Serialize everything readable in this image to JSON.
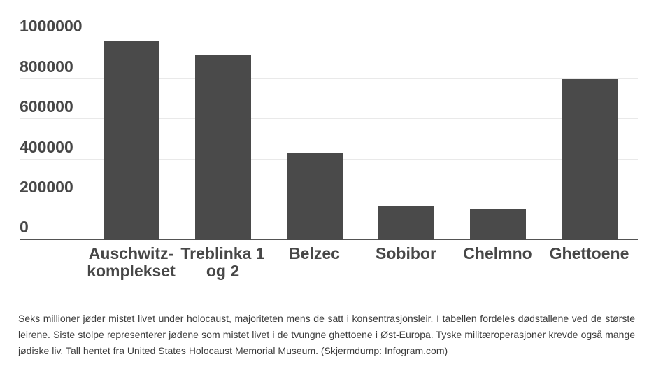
{
  "page": {
    "description": "Infogram bar chart screenshot over jødiske dødstall under holocaust"
  },
  "colors": {
    "background": "#ffffff",
    "bar": "#4a4a4a",
    "axis_text": "#474747",
    "gridline": "#e9e9e9",
    "baseline": "#545454",
    "caption_text": "#3c3c3c"
  },
  "chart_data": {
    "type": "bar",
    "title": "",
    "xlabel": "",
    "ylabel": "",
    "categories": [
      "Auschwitz-komplekset",
      "Treblinka 1 og 2",
      "Belzec",
      "Sobibor",
      "Chelmno",
      "Ghettoene"
    ],
    "categories_lines": [
      [
        "Auschwitz-",
        "komplekset"
      ],
      [
        "Treblinka 1",
        "og 2"
      ],
      [
        "Belzec"
      ],
      [
        "Sobibor"
      ],
      [
        "Chelmno"
      ],
      [
        "Ghettoene"
      ]
    ],
    "values": [
      990000,
      920000,
      430000,
      167000,
      156000,
      800000
    ],
    "ylim": [
      0,
      1000000
    ],
    "yticks": [
      0,
      200000,
      400000,
      600000,
      800000,
      1000000
    ],
    "ytick_labels": [
      "0",
      "200000",
      "400000",
      "600000",
      "800000",
      "1000000"
    ],
    "grid": true,
    "legend": false,
    "bar_color": "#4a4a4a"
  },
  "caption": {
    "text": "Seks millioner jøder mistet livet under holocaust, majoriteten mens de satt i konsentrasjonsleir. I tabellen fordeles dødstallene ved de største leirene. Siste stolpe representerer jødene som mistet livet i de tvungne ghettoene i Øst-Europa. Tyske militæroperasjoner krevde også mange jødiske liv. Tall hentet fra United States Holocaust Memorial Museum. (Skjermdump: Infogram.com)"
  }
}
